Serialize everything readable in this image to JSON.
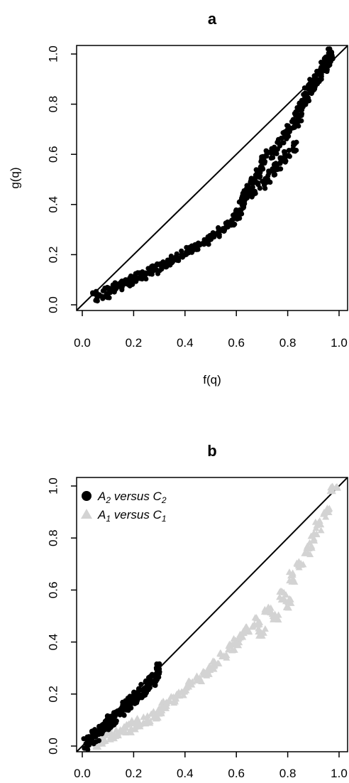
{
  "chart_data": [
    {
      "panel": "a",
      "type": "scatter",
      "title": "a",
      "xlabel": "f(q)",
      "ylabel": "g(q)",
      "xlim": [
        0,
        1
      ],
      "ylim": [
        0,
        1
      ],
      "xticks": [
        "0.0",
        "0.2",
        "0.4",
        "0.6",
        "0.8",
        "1.0"
      ],
      "yticks": [
        "0.0",
        "0.2",
        "0.4",
        "0.6",
        "0.8",
        "1.0"
      ],
      "reference_line": "y = x",
      "grid": false,
      "series": [
        {
          "marker": "circle",
          "color": "#000000",
          "x": [
            0.05,
            0.07,
            0.09,
            0.1,
            0.12,
            0.14,
            0.16,
            0.18,
            0.2,
            0.22,
            0.24,
            0.26,
            0.28,
            0.3,
            0.32,
            0.34,
            0.36,
            0.38,
            0.4,
            0.42,
            0.44,
            0.46,
            0.48,
            0.5,
            0.52,
            0.54,
            0.56,
            0.58,
            0.6,
            0.61,
            0.62,
            0.63,
            0.64,
            0.65,
            0.66,
            0.67,
            0.68,
            0.69,
            0.7,
            0.71,
            0.72,
            0.73,
            0.74,
            0.75,
            0.76,
            0.77,
            0.78,
            0.79,
            0.8,
            0.81,
            0.82,
            0.83,
            0.84,
            0.85,
            0.86,
            0.87,
            0.88,
            0.89,
            0.9,
            0.91,
            0.92,
            0.93,
            0.94,
            0.95,
            0.96,
            0.97
          ],
          "y": [
            0.03,
            0.04,
            0.05,
            0.05,
            0.06,
            0.07,
            0.08,
            0.09,
            0.1,
            0.11,
            0.12,
            0.13,
            0.14,
            0.15,
            0.16,
            0.17,
            0.18,
            0.19,
            0.21,
            0.22,
            0.23,
            0.24,
            0.25,
            0.27,
            0.28,
            0.3,
            0.32,
            0.33,
            0.35,
            0.37,
            0.4,
            0.43,
            0.45,
            0.48,
            0.44,
            0.5,
            0.52,
            0.55,
            0.48,
            0.58,
            0.5,
            0.6,
            0.53,
            0.62,
            0.55,
            0.65,
            0.58,
            0.68,
            0.6,
            0.7,
            0.63,
            0.72,
            0.75,
            0.78,
            0.8,
            0.82,
            0.85,
            0.86,
            0.88,
            0.9,
            0.92,
            0.93,
            0.95,
            0.96,
            0.98,
            1.0
          ]
        }
      ]
    },
    {
      "panel": "b",
      "type": "scatter",
      "title": "b",
      "xlim": [
        0,
        1
      ],
      "ylim": [
        0,
        1
      ],
      "xticks": [
        "0.0",
        "0.2",
        "0.4",
        "0.6",
        "0.8",
        "1.0"
      ],
      "yticks": [
        "0.0",
        "0.2",
        "0.4",
        "0.6",
        "0.8",
        "1.0"
      ],
      "reference_line": "y = x",
      "grid": false,
      "legend": {
        "position": "top-left",
        "entries": [
          {
            "label": "A",
            "sub": "2",
            "mid": " versus C",
            "sub2": "2",
            "marker": "circle",
            "color": "#000000"
          },
          {
            "label": "A",
            "sub": "1",
            "mid": " versus C",
            "sub2": "1",
            "marker": "triangle",
            "color": "#d3d3d3"
          }
        ]
      },
      "series": [
        {
          "marker": "triangle",
          "color": "#d3d3d3",
          "x": [
            0.05,
            0.08,
            0.1,
            0.12,
            0.15,
            0.18,
            0.2,
            0.22,
            0.25,
            0.28,
            0.3,
            0.32,
            0.35,
            0.38,
            0.4,
            0.42,
            0.45,
            0.48,
            0.5,
            0.52,
            0.55,
            0.58,
            0.6,
            0.62,
            0.65,
            0.68,
            0.7,
            0.72,
            0.75,
            0.78,
            0.8,
            0.82,
            0.85,
            0.88,
            0.9,
            0.92,
            0.95,
            0.98
          ],
          "y": [
            0.02,
            0.03,
            0.04,
            0.05,
            0.06,
            0.07,
            0.08,
            0.09,
            0.1,
            0.12,
            0.14,
            0.16,
            0.18,
            0.2,
            0.22,
            0.24,
            0.26,
            0.28,
            0.3,
            0.32,
            0.35,
            0.38,
            0.4,
            0.43,
            0.45,
            0.48,
            0.44,
            0.52,
            0.5,
            0.58,
            0.55,
            0.65,
            0.7,
            0.75,
            0.8,
            0.85,
            0.9,
            0.98
          ]
        },
        {
          "marker": "circle",
          "color": "#000000",
          "x": [
            0.02,
            0.03,
            0.04,
            0.05,
            0.06,
            0.07,
            0.08,
            0.09,
            0.1,
            0.11,
            0.12,
            0.13,
            0.14,
            0.15,
            0.16,
            0.17,
            0.18,
            0.19,
            0.2,
            0.21,
            0.22,
            0.23,
            0.24,
            0.25,
            0.26,
            0.27,
            0.28,
            0.29,
            0.3
          ],
          "y": [
            0.01,
            0.02,
            0.03,
            0.04,
            0.05,
            0.06,
            0.07,
            0.08,
            0.09,
            0.1,
            0.1,
            0.11,
            0.12,
            0.13,
            0.14,
            0.15,
            0.16,
            0.17,
            0.18,
            0.19,
            0.2,
            0.21,
            0.22,
            0.23,
            0.24,
            0.25,
            0.26,
            0.27,
            0.3
          ]
        }
      ]
    }
  ]
}
